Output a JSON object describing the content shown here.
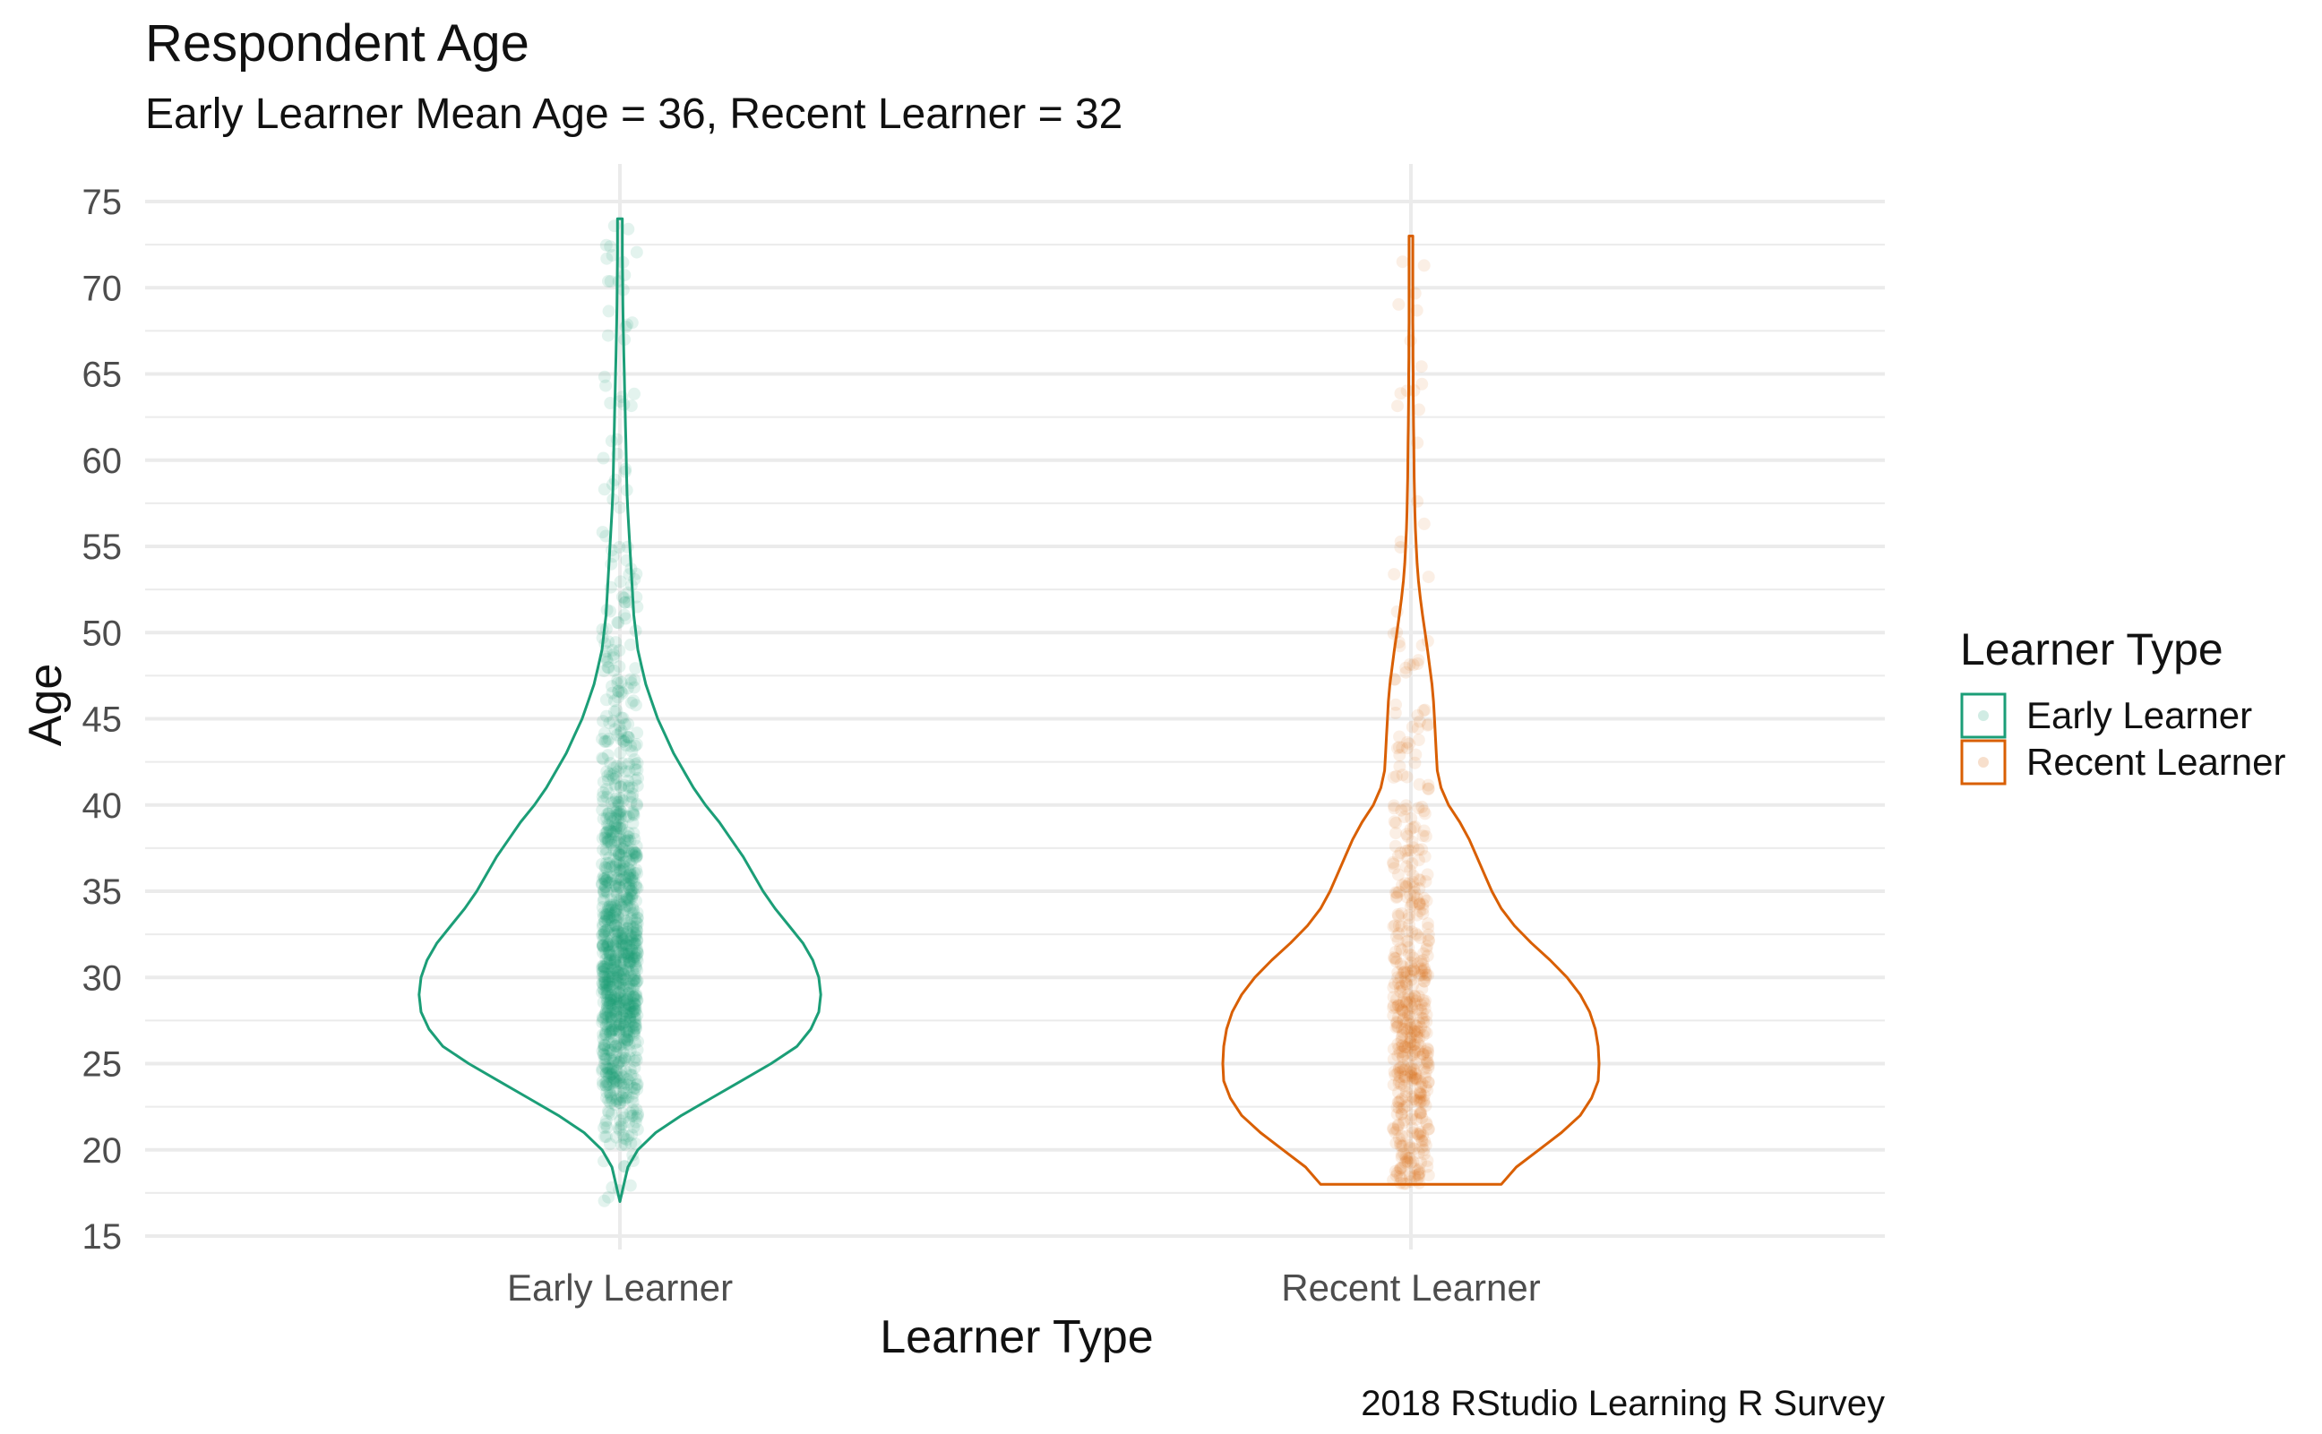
{
  "chart_data": {
    "type": "violin",
    "title": "Respondent Age",
    "subtitle": "Early Learner Mean Age = 36, Recent Learner = 32",
    "caption": "2018 RStudio Learning R Survey",
    "xlabel": "Learner Type",
    "ylabel": "Age",
    "ylim": [
      15,
      75
    ],
    "yticks": [
      15,
      20,
      25,
      30,
      35,
      40,
      45,
      50,
      55,
      60,
      65,
      70,
      75
    ],
    "categories": [
      "Early Learner",
      "Recent Learner"
    ],
    "grid": true,
    "legend": {
      "title": "Learner Type",
      "position": "right",
      "entries": [
        "Early Learner",
        "Recent Learner"
      ]
    },
    "series": [
      {
        "name": "Early Learner",
        "color": "#1b9e77",
        "min": 17,
        "max": 74,
        "mean": 36,
        "density_profile": [
          [
            17,
            0.0
          ],
          [
            18,
            0.02
          ],
          [
            19,
            0.04
          ],
          [
            20,
            0.09
          ],
          [
            21,
            0.18
          ],
          [
            22,
            0.31
          ],
          [
            23,
            0.46
          ],
          [
            24,
            0.61
          ],
          [
            25,
            0.76
          ],
          [
            26,
            0.89
          ],
          [
            27,
            0.96
          ],
          [
            28,
            1.0
          ],
          [
            29,
            1.01
          ],
          [
            30,
            1.0
          ],
          [
            31,
            0.97
          ],
          [
            32,
            0.92
          ],
          [
            33,
            0.85
          ],
          [
            34,
            0.78
          ],
          [
            35,
            0.72
          ],
          [
            36,
            0.67
          ],
          [
            37,
            0.62
          ],
          [
            38,
            0.56
          ],
          [
            39,
            0.5
          ],
          [
            40,
            0.43
          ],
          [
            41,
            0.37
          ],
          [
            42,
            0.32
          ],
          [
            43,
            0.27
          ],
          [
            44,
            0.23
          ],
          [
            45,
            0.19
          ],
          [
            46,
            0.16
          ],
          [
            47,
            0.13
          ],
          [
            48,
            0.11
          ],
          [
            49,
            0.09
          ],
          [
            50,
            0.08
          ],
          [
            51,
            0.07
          ],
          [
            52,
            0.065
          ],
          [
            53,
            0.06
          ],
          [
            54,
            0.055
          ],
          [
            55,
            0.05
          ],
          [
            56,
            0.045
          ],
          [
            57,
            0.04
          ],
          [
            58,
            0.036
          ],
          [
            59,
            0.034
          ],
          [
            60,
            0.032
          ],
          [
            61,
            0.03
          ],
          [
            62,
            0.028
          ],
          [
            63,
            0.026
          ],
          [
            64,
            0.024
          ],
          [
            65,
            0.022
          ],
          [
            66,
            0.02
          ],
          [
            67,
            0.018
          ],
          [
            68,
            0.016
          ],
          [
            69,
            0.015
          ],
          [
            70,
            0.014
          ],
          [
            71,
            0.013
          ],
          [
            72,
            0.012
          ],
          [
            73,
            0.012
          ],
          [
            74,
            0.012
          ]
        ]
      },
      {
        "name": "Recent Learner",
        "color": "#d95f02",
        "min": 18,
        "max": 73,
        "mean": 32,
        "density_profile": [
          [
            18,
            0.48
          ],
          [
            19,
            0.56
          ],
          [
            20,
            0.68
          ],
          [
            21,
            0.8
          ],
          [
            22,
            0.9
          ],
          [
            23,
            0.96
          ],
          [
            24,
            0.995
          ],
          [
            25,
            1.0
          ],
          [
            26,
            0.995
          ],
          [
            27,
            0.98
          ],
          [
            28,
            0.95
          ],
          [
            29,
            0.9
          ],
          [
            30,
            0.83
          ],
          [
            31,
            0.74
          ],
          [
            32,
            0.64
          ],
          [
            33,
            0.55
          ],
          [
            34,
            0.48
          ],
          [
            35,
            0.43
          ],
          [
            36,
            0.39
          ],
          [
            37,
            0.35
          ],
          [
            38,
            0.31
          ],
          [
            39,
            0.26
          ],
          [
            40,
            0.2
          ],
          [
            41,
            0.16
          ],
          [
            42,
            0.14
          ],
          [
            43,
            0.135
          ],
          [
            44,
            0.13
          ],
          [
            45,
            0.125
          ],
          [
            46,
            0.12
          ],
          [
            47,
            0.112
          ],
          [
            48,
            0.1
          ],
          [
            49,
            0.088
          ],
          [
            50,
            0.075
          ],
          [
            51,
            0.062
          ],
          [
            52,
            0.05
          ],
          [
            53,
            0.04
          ],
          [
            54,
            0.033
          ],
          [
            55,
            0.028
          ],
          [
            56,
            0.024
          ],
          [
            57,
            0.021
          ],
          [
            58,
            0.019
          ],
          [
            59,
            0.017
          ],
          [
            60,
            0.016
          ],
          [
            61,
            0.015
          ],
          [
            62,
            0.014
          ],
          [
            63,
            0.013
          ],
          [
            64,
            0.012
          ],
          [
            65,
            0.012
          ],
          [
            66,
            0.011
          ],
          [
            67,
            0.011
          ],
          [
            68,
            0.01
          ],
          [
            69,
            0.01
          ],
          [
            70,
            0.01
          ],
          [
            71,
            0.01
          ],
          [
            72,
            0.01
          ],
          [
            73,
            0.01
          ]
        ]
      }
    ]
  },
  "colors": {
    "grid": "#ebebeb",
    "text": "#222222",
    "axis_text": "#4d4d4d"
  }
}
